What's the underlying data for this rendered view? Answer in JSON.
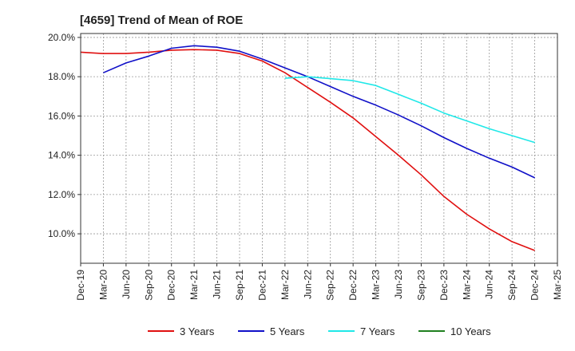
{
  "chart_data": {
    "type": "line",
    "title": "[4659]  Trend of Mean of ROE",
    "xlabel": "",
    "ylabel": "",
    "x_ticks": [
      "Dec-19",
      "Mar-20",
      "Jun-20",
      "Sep-20",
      "Dec-20",
      "Mar-21",
      "Jun-21",
      "Sep-21",
      "Dec-21",
      "Mar-22",
      "Jun-22",
      "Sep-22",
      "Dec-22",
      "Mar-23",
      "Jun-23",
      "Sep-23",
      "Dec-23",
      "Mar-24",
      "Jun-24",
      "Sep-24",
      "Dec-24",
      "Mar-25"
    ],
    "y_ticks": [
      "10.0%",
      "12.0%",
      "14.0%",
      "16.0%",
      "18.0%",
      "20.0%"
    ],
    "y_tick_values": [
      10,
      12,
      14,
      16,
      18,
      20
    ],
    "ylim": [
      8.5,
      20.2
    ],
    "grid": true,
    "legend_position": "bottom",
    "series": [
      {
        "name": "3 Years",
        "color": "#e01010",
        "x": [
          "Dec-19",
          "Mar-20",
          "Jun-20",
          "Sep-20",
          "Dec-20",
          "Mar-21",
          "Jun-21",
          "Sep-21",
          "Dec-21",
          "Mar-22",
          "Jun-22",
          "Sep-22",
          "Dec-22",
          "Mar-23",
          "Jun-23",
          "Sep-23",
          "Dec-23",
          "Mar-24",
          "Jun-24",
          "Sep-24",
          "Dec-24"
        ],
        "values": [
          19.25,
          19.18,
          19.18,
          19.25,
          19.35,
          19.38,
          19.35,
          19.18,
          18.8,
          18.2,
          17.45,
          16.7,
          15.9,
          14.95,
          14.0,
          13.0,
          11.9,
          11.0,
          10.25,
          9.6,
          9.15
        ]
      },
      {
        "name": "5 Years",
        "color": "#1010c8",
        "x": [
          "Mar-20",
          "Jun-20",
          "Sep-20",
          "Dec-20",
          "Mar-21",
          "Jun-21",
          "Sep-21",
          "Dec-21",
          "Mar-22",
          "Jun-22",
          "Sep-22",
          "Dec-22",
          "Mar-23",
          "Jun-23",
          "Sep-23",
          "Dec-23",
          "Mar-24",
          "Jun-24",
          "Sep-24",
          "Dec-24"
        ],
        "values": [
          18.2,
          18.7,
          19.05,
          19.45,
          19.58,
          19.5,
          19.3,
          18.9,
          18.45,
          18.0,
          17.5,
          17.0,
          16.55,
          16.05,
          15.5,
          14.9,
          14.35,
          13.85,
          13.4,
          12.85
        ]
      },
      {
        "name": "7 Years",
        "color": "#20e8e8",
        "x": [
          "Mar-22",
          "Jun-22",
          "Sep-22",
          "Dec-22",
          "Mar-23",
          "Jun-23",
          "Sep-23",
          "Dec-23",
          "Mar-24",
          "Jun-24",
          "Sep-24",
          "Dec-24"
        ],
        "values": [
          17.92,
          18.0,
          17.9,
          17.8,
          17.55,
          17.1,
          16.65,
          16.15,
          15.75,
          15.35,
          15.0,
          14.65
        ]
      },
      {
        "name": "10 Years",
        "color": "#208020",
        "x": [],
        "values": []
      }
    ]
  }
}
